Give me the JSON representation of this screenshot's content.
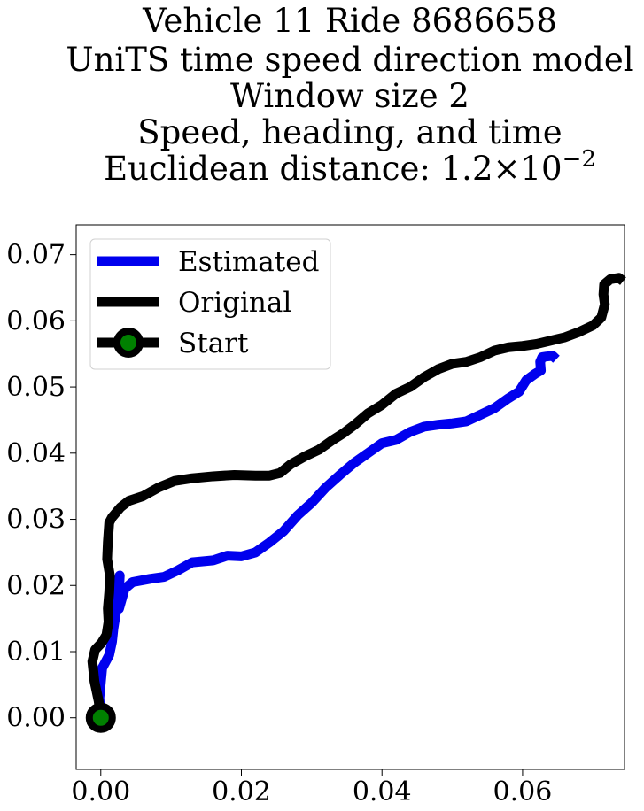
{
  "chart_data": {
    "type": "line",
    "title_lines": [
      "Vehicle 11 Ride 8686658",
      "UniTS time speed direction model",
      "Window size 2",
      "Speed, heading, and time"
    ],
    "title_metric_prefix": "Euclidean distance: ",
    "title_metric_mantissa": "1.2",
    "title_metric_times": "×",
    "title_metric_base": "10",
    "title_metric_exponent": "−2",
    "xlim": [
      -0.0035,
      0.0745
    ],
    "ylim": [
      -0.0078,
      0.0745
    ],
    "x_ticks": [
      0.0,
      0.02,
      0.04,
      0.06
    ],
    "x_tick_labels": [
      "0.00",
      "0.02",
      "0.04",
      "0.06"
    ],
    "y_ticks": [
      0.0,
      0.01,
      0.02,
      0.03,
      0.04,
      0.05,
      0.06,
      0.07
    ],
    "y_tick_labels": [
      "0.00",
      "0.01",
      "0.02",
      "0.03",
      "0.04",
      "0.05",
      "0.06",
      "0.07"
    ],
    "grid": false,
    "legend_position": "upper-left",
    "series": [
      {
        "name": "Estimated",
        "color": "#0000ee",
        "x": [
          0.0,
          -0.0002,
          0.0002,
          0.0012,
          0.0016,
          0.0018,
          0.0021,
          0.0024,
          0.0026,
          0.0027,
          0.0023,
          0.0026,
          0.0034,
          0.0045,
          0.007,
          0.009,
          0.011,
          0.013,
          0.016,
          0.018,
          0.02,
          0.022,
          0.024,
          0.026,
          0.028,
          0.03,
          0.032,
          0.034,
          0.036,
          0.038,
          0.04,
          0.042,
          0.044,
          0.046,
          0.048,
          0.05,
          0.052,
          0.054,
          0.056,
          0.058,
          0.0595,
          0.0605,
          0.0618,
          0.0626,
          0.0625,
          0.0628,
          0.0634,
          0.0643,
          0.0648
        ],
        "y": [
          0.0,
          0.003,
          0.0075,
          0.0095,
          0.0115,
          0.0135,
          0.0155,
          0.0175,
          0.0195,
          0.0215,
          0.0185,
          0.0165,
          0.0195,
          0.0205,
          0.021,
          0.0213,
          0.0223,
          0.0235,
          0.0238,
          0.0245,
          0.0244,
          0.025,
          0.0265,
          0.0282,
          0.0306,
          0.0325,
          0.0348,
          0.0367,
          0.0385,
          0.04,
          0.0415,
          0.042,
          0.0432,
          0.044,
          0.0443,
          0.0445,
          0.0448,
          0.0458,
          0.0468,
          0.0483,
          0.0493,
          0.051,
          0.052,
          0.0525,
          0.0538,
          0.0545,
          0.0546,
          0.0547,
          0.0542
        ]
      },
      {
        "name": "Original",
        "color": "#000000",
        "x": [
          0.0,
          -0.0003,
          -0.0009,
          -0.0012,
          -0.0008,
          0.0001,
          0.0008,
          0.0011,
          0.001,
          0.0012,
          0.0013,
          0.0009,
          0.001,
          0.0012,
          0.0016,
          0.0028,
          0.004,
          0.006,
          0.0082,
          0.0105,
          0.013,
          0.016,
          0.019,
          0.022,
          0.024,
          0.0255,
          0.027,
          0.029,
          0.031,
          0.033,
          0.0345,
          0.036,
          0.038,
          0.04,
          0.042,
          0.044,
          0.046,
          0.048,
          0.05,
          0.052,
          0.054,
          0.056,
          0.058,
          0.06,
          0.062,
          0.064,
          0.066,
          0.068,
          0.07,
          0.0712,
          0.0717,
          0.0715,
          0.0716,
          0.0725,
          0.0737,
          0.0743
        ],
        "y": [
          0.0,
          0.0025,
          0.0055,
          0.0085,
          0.0103,
          0.0113,
          0.0125,
          0.0145,
          0.0165,
          0.019,
          0.0215,
          0.024,
          0.0265,
          0.0295,
          0.0303,
          0.0318,
          0.0328,
          0.0335,
          0.0348,
          0.0358,
          0.0362,
          0.0365,
          0.0367,
          0.0366,
          0.0366,
          0.037,
          0.0383,
          0.0395,
          0.0405,
          0.042,
          0.043,
          0.0442,
          0.046,
          0.0473,
          0.049,
          0.05,
          0.0515,
          0.0527,
          0.0535,
          0.0538,
          0.0545,
          0.0555,
          0.056,
          0.0562,
          0.0565,
          0.057,
          0.0575,
          0.0583,
          0.0593,
          0.0605,
          0.0625,
          0.064,
          0.0655,
          0.0663,
          0.0665,
          0.066
        ]
      },
      {
        "name": "Start",
        "marker": true,
        "line_color": "#000000",
        "marker_edge_color": "#000000",
        "marker_face_color": "#008000",
        "x": [
          0.0
        ],
        "y": [
          0.0
        ]
      }
    ]
  }
}
